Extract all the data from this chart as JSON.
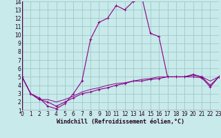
{
  "xlabel": "Windchill (Refroidissement éolien,°C)",
  "bg_color": "#c8eaea",
  "grid_color": "#a0c8c8",
  "line_color": "#880088",
  "x": [
    0,
    1,
    2,
    3,
    4,
    5,
    6,
    7,
    8,
    9,
    10,
    11,
    12,
    13,
    14,
    15,
    16,
    17,
    18,
    19,
    20,
    21,
    22,
    23
  ],
  "y_main": [
    5.0,
    3.0,
    2.5,
    1.5,
    1.2,
    1.8,
    3.0,
    4.5,
    9.5,
    11.5,
    12.0,
    13.5,
    13.0,
    14.0,
    14.5,
    10.2,
    9.8,
    5.0,
    5.0,
    5.0,
    5.3,
    5.0,
    4.0,
    5.0
  ],
  "y_low": [
    5.0,
    3.0,
    2.3,
    2.0,
    1.5,
    2.0,
    2.5,
    3.0,
    3.2,
    3.5,
    3.7,
    4.0,
    4.2,
    4.5,
    4.5,
    4.7,
    4.8,
    5.0,
    5.0,
    5.0,
    5.0,
    4.9,
    3.8,
    5.0
  ],
  "y_ref": [
    5.0,
    3.0,
    2.3,
    2.3,
    2.0,
    2.3,
    2.7,
    3.2,
    3.5,
    3.7,
    4.0,
    4.2,
    4.3,
    4.5,
    4.7,
    4.8,
    5.0,
    5.0,
    5.0,
    5.0,
    5.2,
    5.0,
    4.5,
    5.0
  ],
  "ylim": [
    1,
    14
  ],
  "xlim": [
    0,
    23
  ],
  "yticks": [
    1,
    2,
    3,
    4,
    5,
    6,
    7,
    8,
    9,
    10,
    11,
    12,
    13,
    14
  ],
  "xticks": [
    0,
    1,
    2,
    3,
    4,
    5,
    6,
    7,
    8,
    9,
    10,
    11,
    12,
    13,
    14,
    15,
    16,
    17,
    18,
    19,
    20,
    21,
    22,
    23
  ],
  "tick_fontsize": 5.5,
  "label_fontsize": 6.0
}
